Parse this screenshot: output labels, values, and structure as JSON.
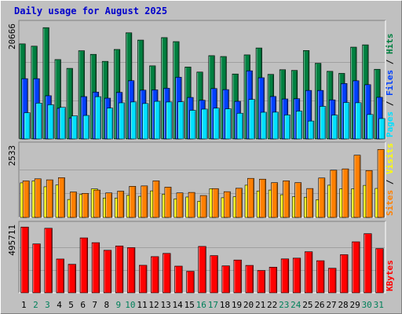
{
  "chart_data": {
    "type": "bar",
    "title": "Daily usage for August 2025",
    "categories": [
      "1",
      "2",
      "3",
      "4",
      "5",
      "6",
      "7",
      "8",
      "9",
      "10",
      "11",
      "12",
      "13",
      "14",
      "15",
      "16",
      "17",
      "18",
      "19",
      "20",
      "21",
      "22",
      "23",
      "24",
      "25",
      "26",
      "27",
      "28",
      "29",
      "30",
      "31"
    ],
    "weekend_days": [
      "2",
      "3",
      "9",
      "10",
      "16",
      "17",
      "23",
      "24",
      "30",
      "31"
    ],
    "panels": [
      {
        "name": "hits-files-pages",
        "max_label": "20666",
        "ylim": [
          0,
          20666
        ],
        "series": [
          {
            "name": "Hits",
            "color": "#008040",
            "values": [
              17029,
              16619,
              19936,
              14217,
              12643,
              15805,
              15156,
              13897,
              16031,
              19011,
              17708,
              13095,
              18151,
              17433,
              12891,
              11983,
              14919,
              14765,
              11637,
              15057,
              16294,
              11565,
              12402,
              12276,
              15838,
              13553,
              12112,
              11747,
              16446,
              16856,
              12478
            ]
          },
          {
            "name": "Files",
            "color": "#0040ff",
            "values": [
              10802,
              10802,
              7745,
              5507,
              3776,
              7588,
              8398,
              7306,
              8348,
              10440,
              8743,
              8793,
              9080,
              11055,
              7441,
              6937,
              9034,
              8841,
              6744,
              12207,
              10969,
              7611,
              7167,
              7211,
              8694,
              8694,
              6999,
              9931,
              10426,
              9728,
              7464
            ]
          },
          {
            "name": "Pages",
            "color": "#00e0ff",
            "values": [
              4700,
              6422,
              6128,
              5656,
              4140,
              4209,
              7572,
              5530,
              6471,
              6627,
              6347,
              6739,
              6622,
              6655,
              5129,
              5349,
              5519,
              5396,
              4606,
              7081,
              4781,
              4798,
              4295,
              4990,
              3212,
              5841,
              4283,
              6533,
              6487,
              4381,
              3655
            ]
          }
        ]
      },
      {
        "name": "visits-sites",
        "max_label": "2533",
        "ylim": [
          0,
          2533
        ],
        "series": [
          {
            "name": "Visits",
            "color": "#ffff00",
            "values": [
              1214,
              1280,
              1076,
              1140,
              630,
              806,
              1000,
              681,
              681,
              774,
              741,
              932,
              815,
              653,
              717,
              569,
              1008,
              692,
              725,
              1132,
              927,
              961,
              797,
              728,
              710,
              619,
              1132,
              1006,
              1004,
              1125,
              1018
            ]
          },
          {
            "name": "Sites",
            "color": "#ff8000",
            "values": [
              1282,
              1355,
              1319,
              1395,
              894,
              845,
              960,
              861,
              922,
              1093,
              1106,
              1284,
              1063,
              862,
              878,
              769,
              1012,
              904,
              1024,
              1371,
              1343,
              1220,
              1284,
              1222,
              1015,
              1384,
              1658,
              1703,
              2183,
              1645,
              2384
            ]
          }
        ]
      },
      {
        "name": "kbytes",
        "max_label": "495711",
        "ylim": [
          0,
          495711
        ],
        "series": [
          {
            "name": "KBytes",
            "color": "#ff0000",
            "values": [
              477330,
              354999,
              468540,
              245432,
              207081,
              398689,
              364154,
              308712,
              340318,
              327883,
              199864,
              262716,
              286186,
              193828,
              156262,
              336817,
              270149,
              195736,
              238152,
              199133,
              162102,
              186300,
              246185,
              251735,
              298185,
              233081,
              178359,
              276839,
              370287,
              429318,
              321226
            ]
          }
        ]
      }
    ],
    "grid": true
  }
}
